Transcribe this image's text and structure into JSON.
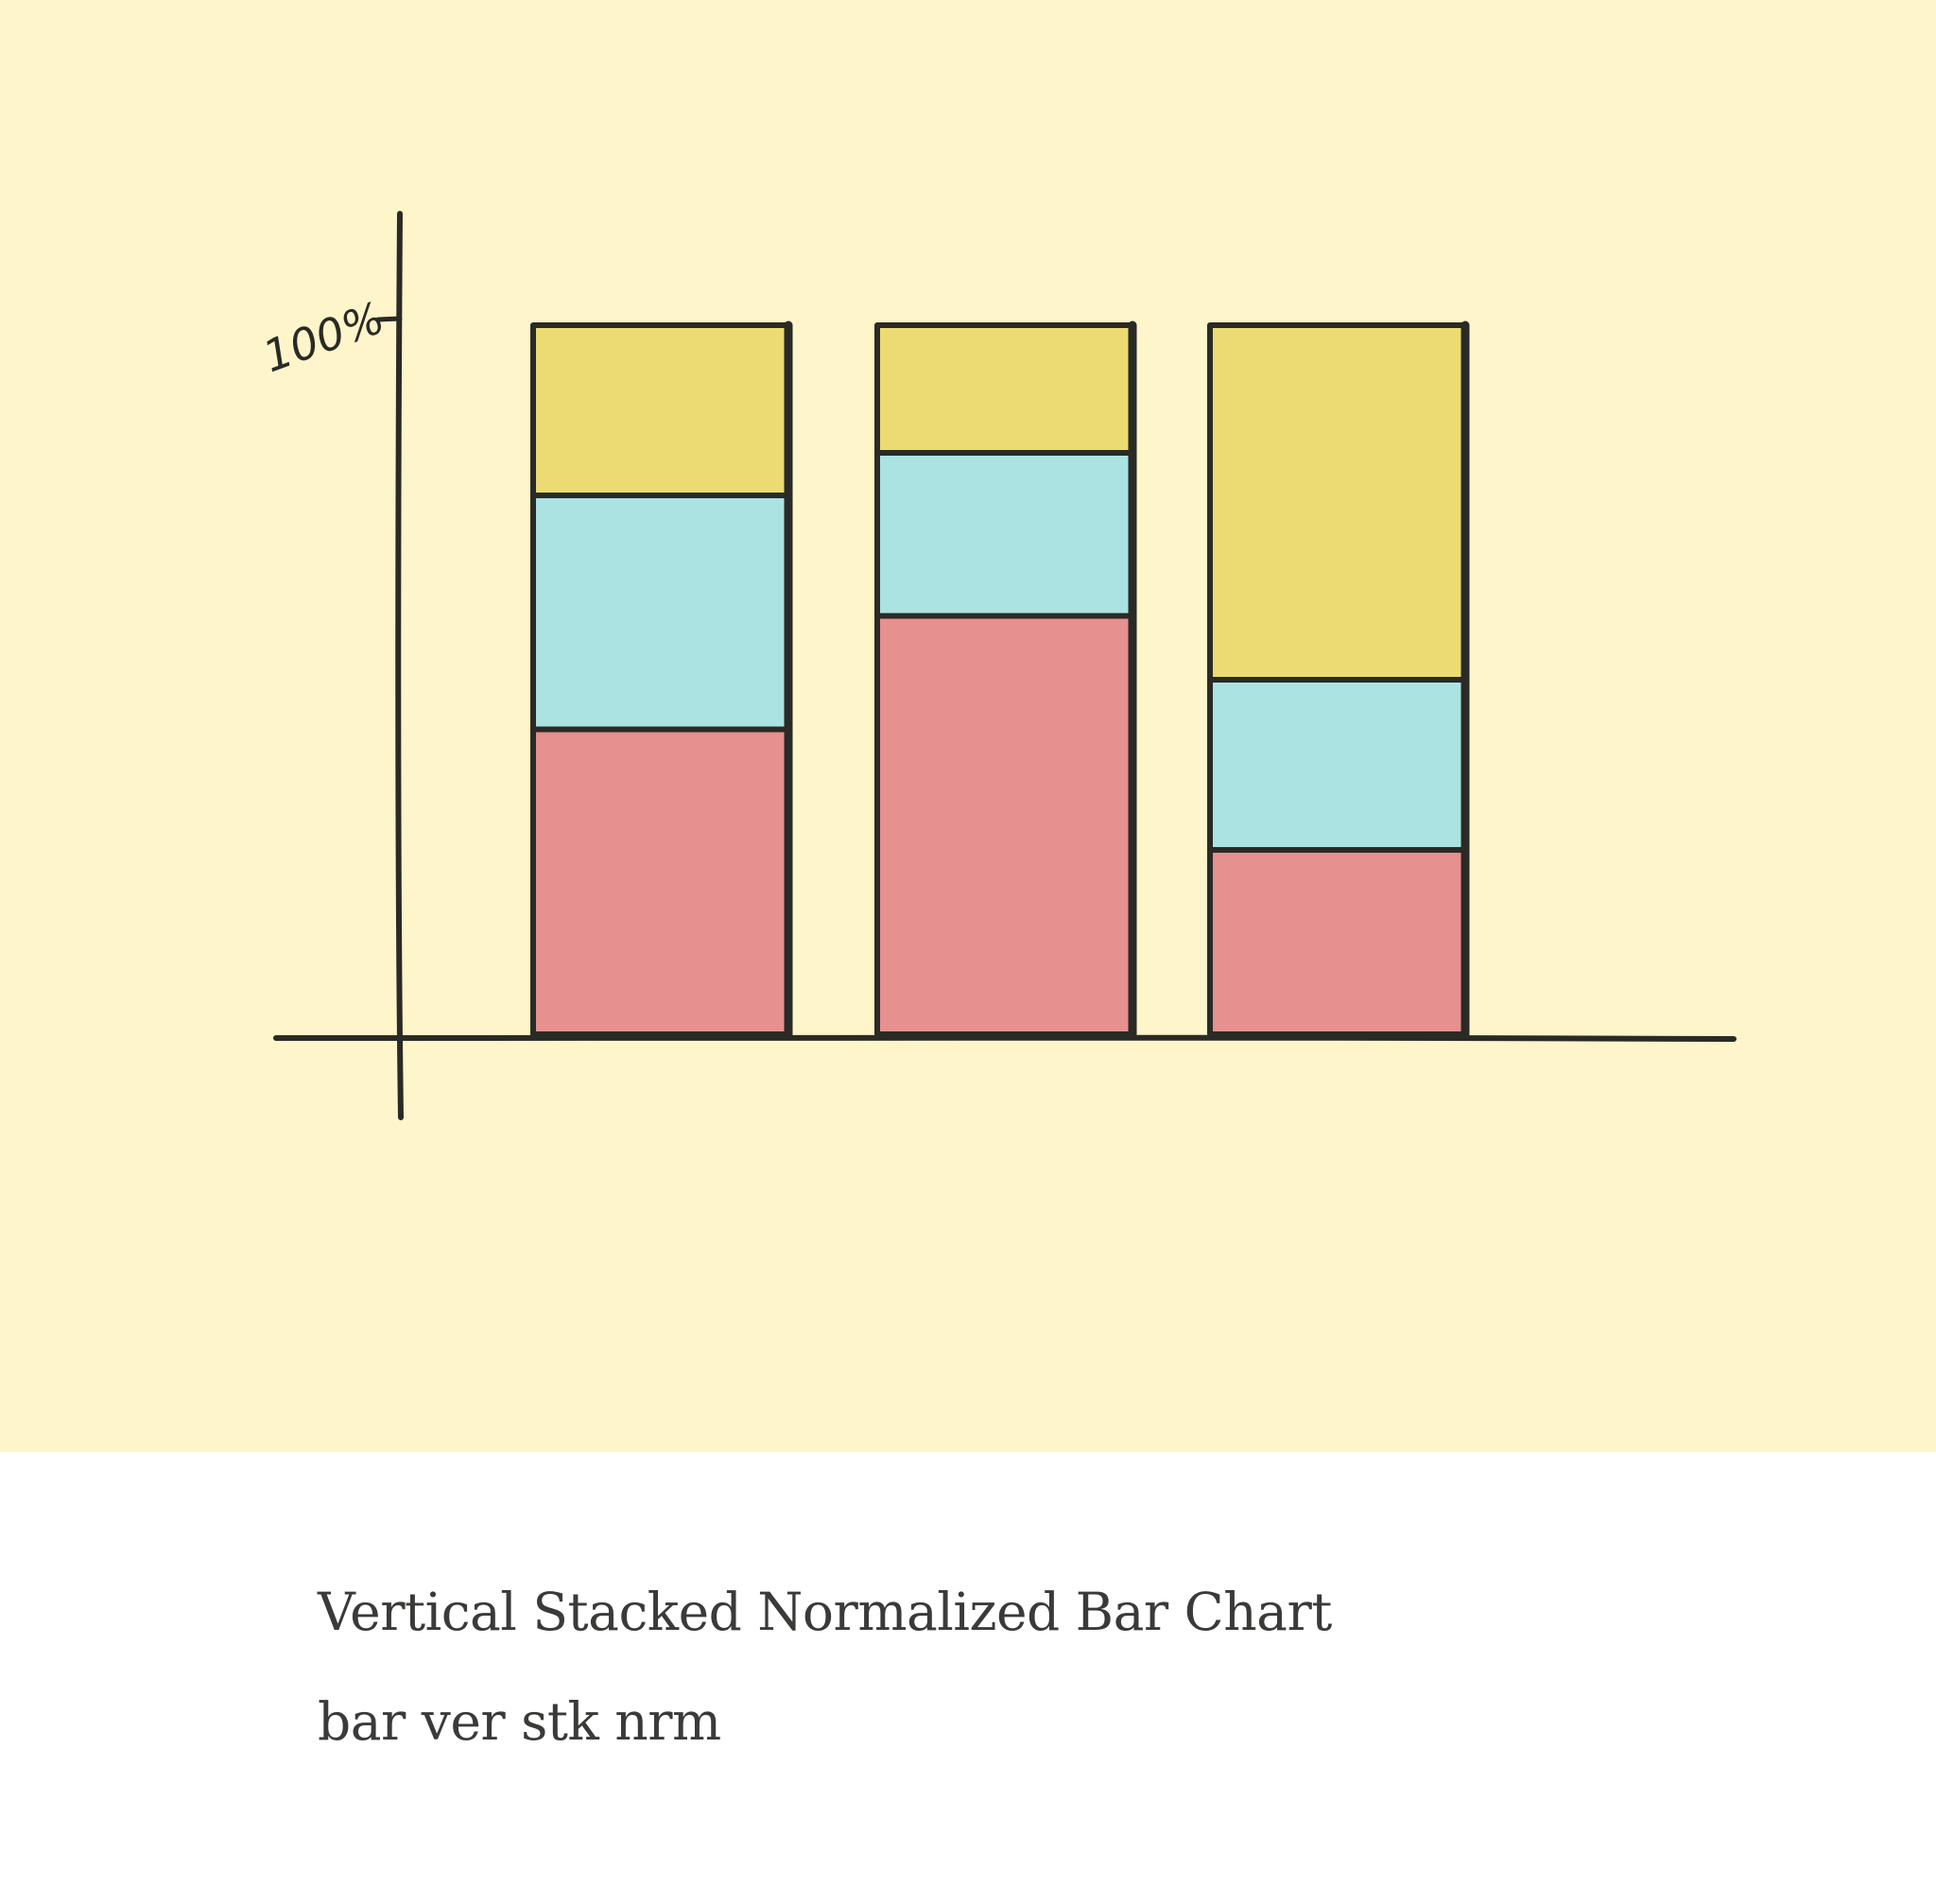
{
  "chart_data": {
    "type": "bar",
    "stacked": true,
    "normalized": true,
    "orientation": "vertical",
    "categories": [
      "",
      "",
      ""
    ],
    "series": [
      {
        "values": [
          43,
          59,
          26
        ],
        "color": "#e79090"
      },
      {
        "values": [
          33,
          23,
          24
        ],
        "color": "#abe3e3"
      },
      {
        "values": [
          24,
          18,
          50
        ],
        "color": "#ebdb72"
      }
    ],
    "ylim": [
      0,
      100
    ],
    "y_tick_label": "100%",
    "grid": false,
    "legend": "none",
    "background_color": "#fef5ca",
    "stroke_color": "#2a2a26"
  },
  "caption": {
    "title": "Vertical Stacked Normalized Bar Chart",
    "tag": "bar ver stk nrm"
  }
}
